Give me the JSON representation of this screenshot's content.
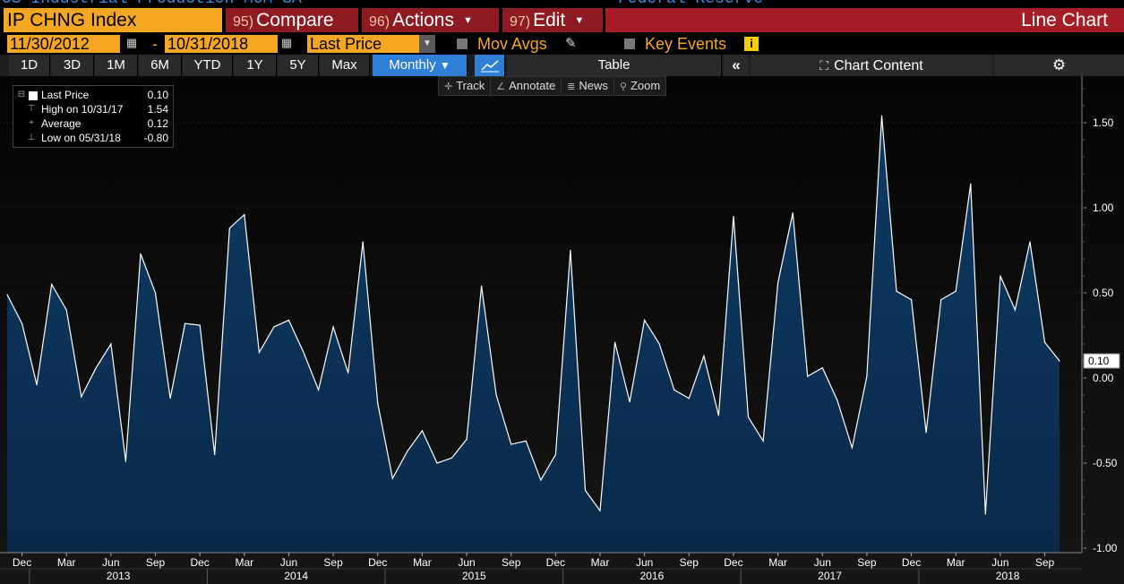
{
  "header": {
    "top_strip_left": "US Industrial Production MoM SA",
    "top_strip_right": "Federal Reserve",
    "ticker": "IP CHNG Index",
    "compare": {
      "num": "95)",
      "label": "Compare"
    },
    "actions": {
      "num": "96)",
      "label": "Actions"
    },
    "edit": {
      "num": "97)",
      "label": "Edit"
    },
    "chart_type": "Line Chart"
  },
  "range": {
    "start": "11/30/2012",
    "dash": "-",
    "end": "10/31/2018",
    "price_field": "Last Price",
    "mov_avgs": "Mov Avgs",
    "key_events": "Key Events",
    "info": "i"
  },
  "periods": [
    "1D",
    "3D",
    "1M",
    "6M",
    "YTD",
    "1Y",
    "5Y",
    "Max"
  ],
  "frequency": "Monthly",
  "table_label": "Table",
  "collapse": "«",
  "chart_content": "Chart Content",
  "gear": "⚙",
  "tools": {
    "track": "Track",
    "annotate": "Annotate",
    "news": "News",
    "zoom": "Zoom"
  },
  "legend": {
    "last": {
      "label": "Last Price",
      "value": "0.10"
    },
    "high": {
      "label": "High on 10/31/17",
      "value": "1.54"
    },
    "avg": {
      "label": "Average",
      "value": "0.12"
    },
    "low": {
      "label": "Low on 05/31/18",
      "value": "-0.80"
    }
  },
  "colors": {
    "line": "#ffffff",
    "fill_top": "#0e3a63",
    "fill_bottom": "#0a2a4a",
    "accent": "#f5a623",
    "red": "#a51d26",
    "active": "#2f7fd7"
  },
  "chart_data": {
    "type": "area",
    "start_month": "2012-11",
    "values": [
      0.49,
      0.32,
      -0.04,
      0.55,
      0.4,
      -0.11,
      0.06,
      0.2,
      -0.49,
      0.73,
      0.5,
      -0.12,
      0.32,
      0.31,
      -0.45,
      0.88,
      0.96,
      0.15,
      0.3,
      0.34,
      0.15,
      -0.07,
      0.3,
      0.03,
      0.8,
      -0.15,
      -0.59,
      -0.43,
      -0.31,
      -0.5,
      -0.47,
      -0.36,
      0.54,
      -0.1,
      -0.39,
      -0.37,
      -0.6,
      -0.45,
      0.75,
      -0.66,
      -0.78,
      0.21,
      -0.14,
      0.34,
      0.2,
      -0.07,
      -0.12,
      0.13,
      -0.22,
      0.95,
      -0.23,
      -0.37,
      0.56,
      0.97,
      0.01,
      0.06,
      -0.13,
      -0.41,
      0.01,
      1.54,
      0.51,
      0.46,
      -0.32,
      0.46,
      0.51,
      1.14,
      -0.8,
      0.6,
      0.4,
      0.8,
      0.21,
      0.1
    ],
    "ylim": [
      -1.0,
      1.75
    ],
    "yticks": [
      "1.50",
      "1.00",
      "0.50",
      "0.00",
      "-0.50",
      "-1.00"
    ],
    "ytick_values": [
      1.5,
      1.0,
      0.5,
      0.0,
      -0.5,
      -1.0
    ],
    "last_label": "0.10",
    "month_ticks": [
      "Dec",
      "Mar",
      "Jun",
      "Sep",
      "Dec",
      "Mar",
      "Jun",
      "Sep",
      "Dec",
      "Mar",
      "Jun",
      "Sep",
      "Dec",
      "Mar",
      "Jun",
      "Sep",
      "Dec",
      "Mar",
      "Jun",
      "Sep",
      "Dec",
      "Mar",
      "Jun",
      "Sep"
    ],
    "years": [
      "2013",
      "2014",
      "2015",
      "2016",
      "2017",
      "2018"
    ],
    "grid": true
  }
}
